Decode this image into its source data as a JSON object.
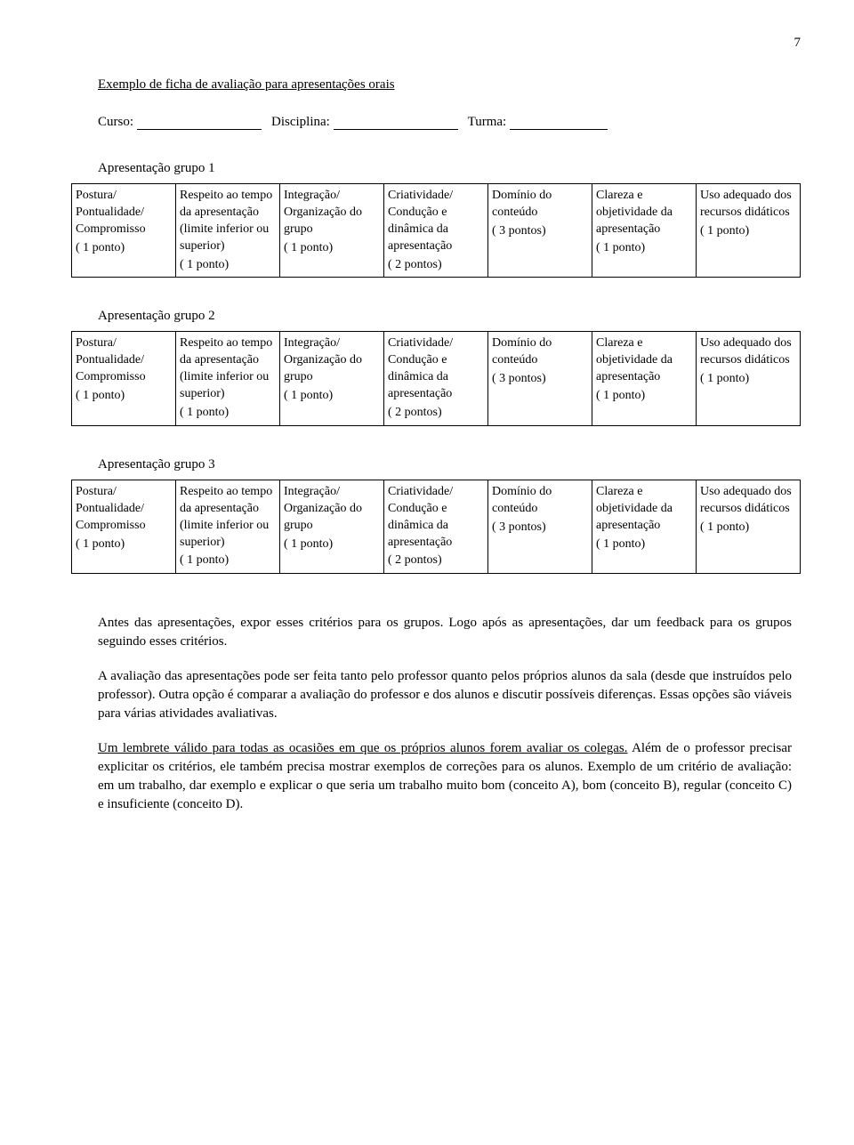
{
  "page_number": "7",
  "title": "Exemplo de ficha de avaliação para apresentações orais",
  "form": {
    "curso_label": "Curso:",
    "disciplina_label": "Disciplina:",
    "turma_label": "Turma:"
  },
  "groups": [
    {
      "label": "Apresentação grupo 1"
    },
    {
      "label": "Apresentação grupo 2"
    },
    {
      "label": "Apresentação grupo 3"
    }
  ],
  "rubric_columns": [
    {
      "text": "Postura/ Pontualidade/ Compromisso",
      "points": "( 1 ponto)"
    },
    {
      "text": "Respeito ao tempo da apresentação (limite inferior ou superior)",
      "points": "( 1 ponto)"
    },
    {
      "text": "Integração/ Organização do grupo",
      "points": "( 1 ponto)"
    },
    {
      "text": "Criatividade/ Condução e dinâmica da apresentação",
      "points": "( 2 pontos)"
    },
    {
      "text": "Domínio do conteúdo",
      "points": "( 3 pontos)"
    },
    {
      "text": "Clareza e objetividade da apresentação",
      "points": "( 1 ponto)"
    },
    {
      "text": "Uso adequado dos recursos didáticos",
      "points": "( 1 ponto)"
    }
  ],
  "paragraphs": {
    "p1": "Antes das apresentações, expor esses critérios para os grupos. Logo após as apresentações, dar um feedback para os grupos seguindo esses critérios.",
    "p2": "A avaliação das apresentações pode ser feita tanto pelo professor quanto pelos próprios alunos da sala (desde que instruídos pelo professor). Outra opção é comparar a avaliação do professor e dos alunos e discutir possíveis diferenças. Essas opções são viáveis para várias atividades avaliativas.",
    "p3a": "Um lembrete válido para todas as ocasiões em que os próprios alunos forem avaliar os colegas.",
    "p3b": " Além de o professor precisar explicitar os critérios, ele também precisa mostrar exemplos de correções para os alunos. Exemplo de um critério de avaliação: em um trabalho, dar exemplo e explicar o que seria um trabalho muito bom (conceito A), bom (conceito B), regular (conceito C) e insuficiente (conceito D)."
  }
}
